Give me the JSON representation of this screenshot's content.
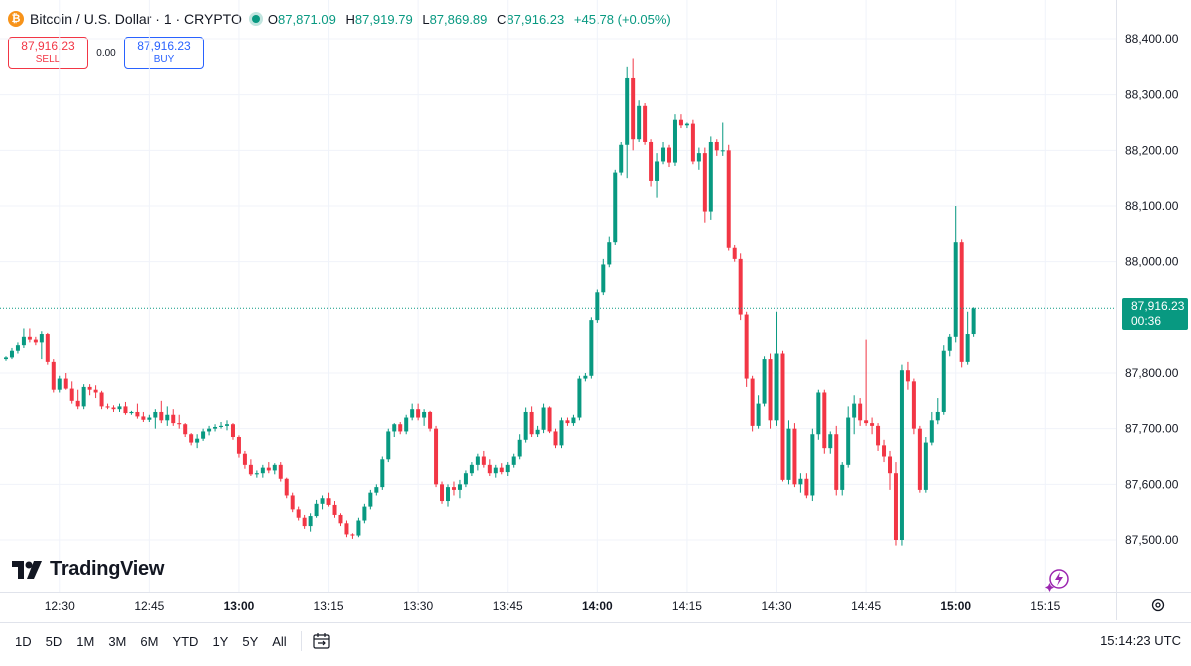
{
  "header": {
    "title": "Bitcoin / U.S. Dollar · 1 · CRYPTO",
    "ohlc": [
      {
        "k": "O",
        "v": "87,871.09"
      },
      {
        "k": "H",
        "v": "87,919.79"
      },
      {
        "k": "L",
        "v": "87,869.89"
      },
      {
        "k": "C",
        "v": "87,916.23"
      }
    ],
    "change": "+45.78 (+0.05%)"
  },
  "trade": {
    "sell_price": "87,916.23",
    "sell_label": "SELL",
    "spread": "0.00",
    "buy_price": "87,916.23",
    "buy_label": "BUY"
  },
  "price_tag": {
    "price": "87,916.23",
    "countdown": "00:36"
  },
  "logo": "TradingView",
  "bottom_bar": {
    "ranges": [
      "1D",
      "5D",
      "1M",
      "3M",
      "6M",
      "YTD",
      "1Y",
      "5Y",
      "All"
    ],
    "clock": "15:14:23 UTC"
  },
  "colors": {
    "up": "#089981",
    "down": "#f23645",
    "grid": "#f0f3fa",
    "text": "#131722"
  },
  "chart_data": {
    "type": "candlestick",
    "interval": "1 minute",
    "y_ticks": [
      88400,
      88300,
      88200,
      88100,
      88000,
      87800,
      87700,
      87600,
      87500
    ],
    "y_tick_labels": [
      "88,400.00",
      "88,300.00",
      "88,200.00",
      "88,100.00",
      "88,000.00",
      "87,800.00",
      "87,700.00",
      "87,600.00",
      "87,500.00"
    ],
    "x_ticks": [
      "12:30",
      "12:45",
      "13:00",
      "13:15",
      "13:30",
      "13:45",
      "14:00",
      "14:15",
      "14:30",
      "14:45",
      "15:00",
      "15:15"
    ],
    "x_ticks_bold": [
      false,
      false,
      true,
      false,
      false,
      false,
      true,
      false,
      false,
      false,
      true,
      false
    ],
    "first_time": "12:21",
    "current_price": 87916.23,
    "candles": [
      [
        87825,
        87830,
        87822,
        87828
      ],
      [
        87828,
        87845,
        87825,
        87840
      ],
      [
        87840,
        87855,
        87835,
        87850
      ],
      [
        87850,
        87880,
        87845,
        87865
      ],
      [
        87865,
        87880,
        87855,
        87860
      ],
      [
        87860,
        87865,
        87850,
        87855
      ],
      [
        87855,
        87875,
        87825,
        87870
      ],
      [
        87870,
        87872,
        87815,
        87820
      ],
      [
        87820,
        87825,
        87765,
        87770
      ],
      [
        87770,
        87795,
        87765,
        87790
      ],
      [
        87790,
        87800,
        87770,
        87772
      ],
      [
        87772,
        87785,
        87745,
        87750
      ],
      [
        87750,
        87770,
        87735,
        87740
      ],
      [
        87740,
        87780,
        87735,
        87775
      ],
      [
        87775,
        87780,
        87760,
        87770
      ],
      [
        87770,
        87778,
        87755,
        87765
      ],
      [
        87765,
        87768,
        87735,
        87740
      ],
      [
        87740,
        87745,
        87735,
        87738
      ],
      [
        87738,
        87742,
        87730,
        87735
      ],
      [
        87735,
        87745,
        87730,
        87740
      ],
      [
        87740,
        87748,
        87725,
        87728
      ],
      [
        87728,
        87732,
        87725,
        87730
      ],
      [
        87730,
        87745,
        87718,
        87722
      ],
      [
        87722,
        87730,
        87712,
        87716
      ],
      [
        87716,
        87725,
        87712,
        87720
      ],
      [
        87720,
        87735,
        87700,
        87730
      ],
      [
        87730,
        87750,
        87710,
        87715
      ],
      [
        87715,
        87740,
        87705,
        87725
      ],
      [
        87725,
        87735,
        87705,
        87710
      ],
      [
        87710,
        87725,
        87700,
        87708
      ],
      [
        87708,
        87710,
        87685,
        87690
      ],
      [
        87690,
        87692,
        87670,
        87675
      ],
      [
        87675,
        87690,
        87665,
        87682
      ],
      [
        87682,
        87700,
        87678,
        87695
      ],
      [
        87695,
        87705,
        87688,
        87700
      ],
      [
        87700,
        87708,
        87695,
        87703
      ],
      [
        87703,
        87712,
        87700,
        87705
      ],
      [
        87705,
        87715,
        87697,
        87708
      ],
      [
        87708,
        87710,
        87680,
        87685
      ],
      [
        87685,
        87688,
        87648,
        87655
      ],
      [
        87655,
        87660,
        87628,
        87635
      ],
      [
        87635,
        87645,
        87615,
        87618
      ],
      [
        87618,
        87625,
        87612,
        87620
      ],
      [
        87620,
        87635,
        87612,
        87630
      ],
      [
        87630,
        87640,
        87620,
        87625
      ],
      [
        87625,
        87638,
        87618,
        87635
      ],
      [
        87635,
        87640,
        87605,
        87610
      ],
      [
        87610,
        87612,
        87575,
        87580
      ],
      [
        87580,
        87585,
        87550,
        87555
      ],
      [
        87555,
        87560,
        87535,
        87540
      ],
      [
        87540,
        87545,
        87520,
        87525
      ],
      [
        87525,
        87548,
        87515,
        87543
      ],
      [
        87543,
        87572,
        87540,
        87565
      ],
      [
        87565,
        87580,
        87555,
        87575
      ],
      [
        87575,
        87585,
        87560,
        87563
      ],
      [
        87563,
        87570,
        87540,
        87545
      ],
      [
        87545,
        87548,
        87525,
        87530
      ],
      [
        87530,
        87535,
        87505,
        87510
      ],
      [
        87510,
        87512,
        87502,
        87508
      ],
      [
        87508,
        87540,
        87505,
        87535
      ],
      [
        87535,
        87565,
        87530,
        87560
      ],
      [
        87560,
        87590,
        87555,
        87585
      ],
      [
        87585,
        87600,
        87580,
        87595
      ],
      [
        87595,
        87650,
        87590,
        87645
      ],
      [
        87645,
        87700,
        87640,
        87695
      ],
      [
        87695,
        87710,
        87685,
        87708
      ],
      [
        87708,
        87712,
        87690,
        87695
      ],
      [
        87695,
        87725,
        87690,
        87720
      ],
      [
        87720,
        87745,
        87715,
        87735
      ],
      [
        87735,
        87745,
        87715,
        87720
      ],
      [
        87720,
        87735,
        87705,
        87730
      ],
      [
        87730,
        87732,
        87695,
        87700
      ],
      [
        87700,
        87705,
        87595,
        87600
      ],
      [
        87600,
        87605,
        87565,
        87570
      ],
      [
        87570,
        87600,
        87560,
        87595
      ],
      [
        87595,
        87605,
        87580,
        87590
      ],
      [
        87590,
        87608,
        87575,
        87600
      ],
      [
        87600,
        87625,
        87595,
        87620
      ],
      [
        87620,
        87640,
        87615,
        87635
      ],
      [
        87635,
        87655,
        87625,
        87650
      ],
      [
        87650,
        87660,
        87630,
        87635
      ],
      [
        87635,
        87645,
        87615,
        87620
      ],
      [
        87620,
        87635,
        87612,
        87630
      ],
      [
        87630,
        87638,
        87618,
        87622
      ],
      [
        87622,
        87640,
        87615,
        87635
      ],
      [
        87635,
        87655,
        87630,
        87650
      ],
      [
        87650,
        87690,
        87645,
        87680
      ],
      [
        87680,
        87738,
        87675,
        87730
      ],
      [
        87730,
        87740,
        87685,
        87690
      ],
      [
        87690,
        87705,
        87685,
        87698
      ],
      [
        87698,
        87745,
        87692,
        87738
      ],
      [
        87738,
        87740,
        87692,
        87695
      ],
      [
        87695,
        87700,
        87665,
        87670
      ],
      [
        87670,
        87720,
        87665,
        87715
      ],
      [
        87715,
        87720,
        87705,
        87710
      ],
      [
        87710,
        87725,
        87705,
        87720
      ],
      [
        87720,
        87795,
        87715,
        87790
      ],
      [
        87790,
        87800,
        87785,
        87795
      ],
      [
        87795,
        87900,
        87790,
        87895
      ],
      [
        87895,
        87950,
        87890,
        87945
      ],
      [
        87945,
        88005,
        87940,
        87995
      ],
      [
        87995,
        88045,
        87990,
        88035
      ],
      [
        88035,
        88165,
        88030,
        88160
      ],
      [
        88160,
        88215,
        88155,
        88210
      ],
      [
        88210,
        88350,
        88150,
        88330
      ],
      [
        88330,
        88365,
        88200,
        88220
      ],
      [
        88220,
        88290,
        88215,
        88280
      ],
      [
        88280,
        88285,
        88210,
        88215
      ],
      [
        88215,
        88220,
        88135,
        88145
      ],
      [
        88145,
        88195,
        88115,
        88180
      ],
      [
        88180,
        88215,
        88175,
        88205
      ],
      [
        88205,
        88210,
        88170,
        88178
      ],
      [
        88178,
        88265,
        88172,
        88255
      ],
      [
        88255,
        88265,
        88240,
        88245
      ],
      [
        88245,
        88250,
        88240,
        88248
      ],
      [
        88248,
        88255,
        88175,
        88180
      ],
      [
        88180,
        88205,
        88165,
        88195
      ],
      [
        88195,
        88205,
        88070,
        88090
      ],
      [
        88090,
        88225,
        88075,
        88215
      ],
      [
        88215,
        88220,
        88190,
        88200
      ],
      [
        88200,
        88250,
        88190,
        88200
      ],
      [
        88200,
        88210,
        88020,
        88025
      ],
      [
        88025,
        88030,
        88000,
        88005
      ],
      [
        88005,
        88015,
        87895,
        87905
      ],
      [
        87905,
        87910,
        87775,
        87790
      ],
      [
        87790,
        87795,
        87695,
        87705
      ],
      [
        87705,
        87760,
        87700,
        87745
      ],
      [
        87745,
        87830,
        87740,
        87825
      ],
      [
        87825,
        87835,
        87700,
        87715
      ],
      [
        87715,
        87910,
        87705,
        87835
      ],
      [
        87835,
        87840,
        87605,
        87608
      ],
      [
        87608,
        87715,
        87600,
        87700
      ],
      [
        87700,
        87710,
        87595,
        87600
      ],
      [
        87600,
        87620,
        87585,
        87610
      ],
      [
        87610,
        87620,
        87575,
        87580
      ],
      [
        87580,
        87700,
        87570,
        87690
      ],
      [
        87690,
        87770,
        87680,
        87765
      ],
      [
        87765,
        87770,
        87655,
        87665
      ],
      [
        87665,
        87695,
        87655,
        87690
      ],
      [
        87690,
        87705,
        87580,
        87590
      ],
      [
        87590,
        87640,
        87580,
        87635
      ],
      [
        87635,
        87740,
        87630,
        87720
      ],
      [
        87720,
        87760,
        87690,
        87745
      ],
      [
        87745,
        87755,
        87705,
        87715
      ],
      [
        87715,
        87860,
        87705,
        87710
      ],
      [
        87710,
        87720,
        87690,
        87705
      ],
      [
        87705,
        87710,
        87660,
        87670
      ],
      [
        87670,
        87680,
        87640,
        87650
      ],
      [
        87650,
        87660,
        87590,
        87620
      ],
      [
        87620,
        87640,
        87490,
        87500
      ],
      [
        87500,
        87815,
        87490,
        87805
      ],
      [
        87805,
        87820,
        87770,
        87785
      ],
      [
        87785,
        87790,
        87690,
        87700
      ],
      [
        87700,
        87705,
        87585,
        87590
      ],
      [
        87590,
        87685,
        87585,
        87675
      ],
      [
        87675,
        87730,
        87670,
        87715
      ],
      [
        87715,
        87755,
        87708,
        87730
      ],
      [
        87730,
        87850,
        87725,
        87840
      ],
      [
        87840,
        87870,
        87830,
        87865
      ],
      [
        87865,
        88100,
        87855,
        88035
      ],
      [
        88035,
        88040,
        87810,
        87820
      ],
      [
        87820,
        87910,
        87815,
        87870
      ],
      [
        87870,
        87918,
        87865,
        87916
      ]
    ]
  }
}
